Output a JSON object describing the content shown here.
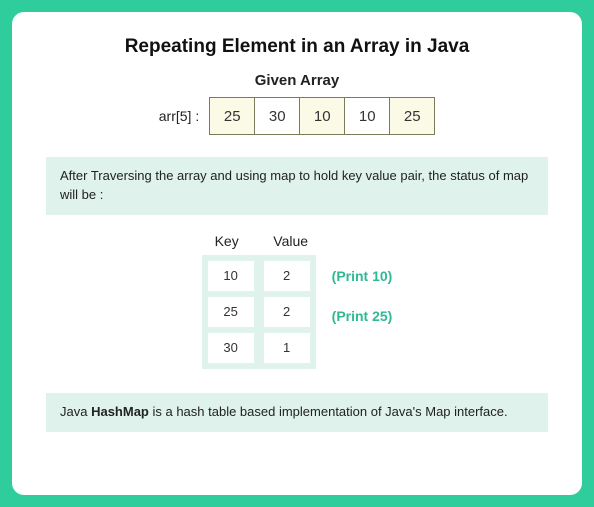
{
  "colors": {
    "page_bg": "#2fcd9b",
    "card_bg": "#ffffff",
    "box_bg": "#dff2ec",
    "cell_border": "#7b7b5a",
    "cell_highlight": "#fafae6",
    "text": "#222222",
    "hint": "#2fb994"
  },
  "title": "Repeating Element in an Array in Java",
  "subtitle": "Given Array",
  "array": {
    "label": "arr[5] :",
    "cells": [
      {
        "value": "25",
        "highlight": true
      },
      {
        "value": "30",
        "highlight": false
      },
      {
        "value": "10",
        "highlight": true
      },
      {
        "value": "10",
        "highlight": false
      },
      {
        "value": "25",
        "highlight": true
      }
    ]
  },
  "note": "After Traversing the array and using map to hold key value pair, the status of map will be :",
  "map": {
    "key_header": "Key",
    "value_header": "Value",
    "rows": [
      {
        "key": "10",
        "value": "2",
        "hint": "(Print 10)"
      },
      {
        "key": "25",
        "value": "2",
        "hint": "(Print 25)"
      },
      {
        "key": "30",
        "value": "1",
        "hint": ""
      }
    ]
  },
  "footer": {
    "prefix": "Java ",
    "bold": "HashMap",
    "suffix": " is a hash table based implementation of Java's Map interface."
  }
}
